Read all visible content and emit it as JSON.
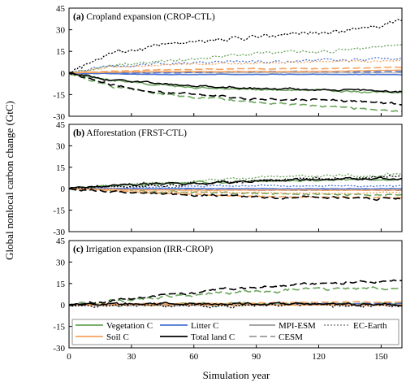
{
  "chart_data": {
    "type": "line",
    "xlabel": "Simulation year",
    "ylabel": "Global nonlocal carbon change (GtC)",
    "xlim": [
      0,
      160
    ],
    "ylim": [
      -30,
      45
    ],
    "xticks": [
      0,
      30,
      60,
      90,
      120,
      150
    ],
    "yticks": [
      -30,
      -15,
      0,
      15,
      30,
      45
    ],
    "colors": {
      "vegetation": "#6aa55c",
      "litter": "#4a73d4",
      "soil": "#f5a35f",
      "total": "#000000"
    },
    "linestyles": {
      "MPI-ESM": "solid",
      "CESM": "long-dash",
      "EC-Earth": "dotted"
    },
    "legend": {
      "placement": "inside-bottom of panel (c)",
      "pools": [
        {
          "key": "vegetation",
          "label": "Vegetation C"
        },
        {
          "key": "litter",
          "label": "Litter C"
        },
        {
          "key": "soil",
          "label": "Soil C"
        },
        {
          "key": "total",
          "label": "Total land C"
        }
      ],
      "models": [
        {
          "key": "MPI-ESM",
          "label": "MPI-ESM"
        },
        {
          "key": "EC-Earth",
          "label": "EC-Earth"
        },
        {
          "key": "CESM",
          "label": "CESM"
        }
      ]
    },
    "panels": [
      {
        "label": "(a)",
        "title": "Cropland expansion (CROP-CTL)",
        "series": [
          {
            "pool": "vegetation",
            "model": "MPI-ESM",
            "x": [
              0,
              20,
              40,
              60,
              80,
              100,
              120,
              140,
              160
            ],
            "y": [
              0,
              -5,
              -8,
              -10,
              -11,
              -12,
              -12,
              -13,
              -14
            ],
            "noise": 0.8
          },
          {
            "pool": "vegetation",
            "model": "CESM",
            "x": [
              0,
              20,
              40,
              60,
              80,
              100,
              120,
              140,
              160
            ],
            "y": [
              0,
              -9,
              -14,
              -17,
              -19,
              -21,
              -23,
              -25,
              -27
            ],
            "noise": 1.0
          },
          {
            "pool": "vegetation",
            "model": "EC-Earth",
            "x": [
              0,
              20,
              40,
              60,
              80,
              100,
              120,
              140,
              160
            ],
            "y": [
              0,
              5,
              8,
              10,
              12,
              14,
              15,
              17,
              20
            ],
            "noise": 1.4
          },
          {
            "pool": "litter",
            "model": "MPI-ESM",
            "x": [
              0,
              40,
              80,
              120,
              160
            ],
            "y": [
              0,
              -1,
              -1,
              -1,
              -1
            ],
            "noise": 0.2
          },
          {
            "pool": "litter",
            "model": "CESM",
            "x": [
              0,
              40,
              80,
              120,
              160
            ],
            "y": [
              0,
              0,
              1,
              1,
              1
            ],
            "noise": 0.3
          },
          {
            "pool": "litter",
            "model": "EC-Earth",
            "x": [
              0,
              20,
              40,
              60,
              80,
              100,
              120,
              140,
              160
            ],
            "y": [
              0,
              5,
              6,
              7,
              8,
              8,
              9,
              9,
              10
            ],
            "noise": 1.2
          },
          {
            "pool": "soil",
            "model": "MPI-ESM",
            "x": [
              0,
              40,
              80,
              120,
              160
            ],
            "y": [
              0,
              1,
              1,
              1,
              2
            ],
            "noise": 0.2
          },
          {
            "pool": "soil",
            "model": "CESM",
            "x": [
              0,
              40,
              80,
              120,
              160
            ],
            "y": [
              0,
              2,
              3,
              3,
              4
            ],
            "noise": 0.3
          },
          {
            "pool": "soil",
            "model": "EC-Earth",
            "x": [
              0,
              20,
              40,
              60,
              80,
              100,
              120,
              140,
              160
            ],
            "y": [
              0,
              4,
              5,
              6,
              7,
              7,
              8,
              8,
              9
            ],
            "noise": 0.7
          },
          {
            "pool": "total",
            "model": "MPI-ESM",
            "x": [
              0,
              20,
              40,
              60,
              80,
              100,
              120,
              140,
              160
            ],
            "y": [
              0,
              -5,
              -7,
              -9,
              -10,
              -11,
              -11,
              -12,
              -13
            ],
            "noise": 0.9
          },
          {
            "pool": "total",
            "model": "CESM",
            "x": [
              0,
              20,
              40,
              60,
              80,
              100,
              120,
              140,
              160
            ],
            "y": [
              0,
              -8,
              -13,
              -15,
              -17,
              -18,
              -19,
              -20,
              -22
            ],
            "noise": 1.0
          },
          {
            "pool": "total",
            "model": "EC-Earth",
            "x": [
              0,
              20,
              40,
              60,
              80,
              100,
              120,
              140,
              160
            ],
            "y": [
              0,
              13,
              18,
              21,
              24,
              26,
              28,
              30,
              36
            ],
            "noise": 1.8
          }
        ]
      },
      {
        "label": "(b)",
        "title": "Afforestation (FRST-CTL)",
        "series": [
          {
            "pool": "vegetation",
            "model": "MPI-ESM",
            "x": [
              0,
              20,
              40,
              60,
              80,
              100,
              120,
              140,
              160
            ],
            "y": [
              0,
              2,
              3,
              4,
              5,
              6,
              6,
              6,
              6
            ],
            "noise": 0.9
          },
          {
            "pool": "vegetation",
            "model": "CESM",
            "x": [
              0,
              40,
              80,
              120,
              160
            ],
            "y": [
              0,
              -2,
              -3,
              -4,
              -4
            ],
            "noise": 0.9
          },
          {
            "pool": "vegetation",
            "model": "EC-Earth",
            "x": [
              0,
              20,
              40,
              60,
              80,
              100,
              120,
              140,
              160
            ],
            "y": [
              0,
              2,
              4,
              6,
              7,
              8,
              9,
              9,
              10
            ],
            "noise": 1.2
          },
          {
            "pool": "litter",
            "model": "MPI-ESM",
            "x": [
              0,
              40,
              80,
              120,
              160
            ],
            "y": [
              0,
              0,
              0,
              0,
              0
            ],
            "noise": 0.3
          },
          {
            "pool": "litter",
            "model": "CESM",
            "x": [
              0,
              40,
              80,
              120,
              160
            ],
            "y": [
              0,
              0,
              -1,
              -1,
              -1
            ],
            "noise": 0.3
          },
          {
            "pool": "litter",
            "model": "EC-Earth",
            "x": [
              0,
              40,
              80,
              120,
              160
            ],
            "y": [
              0,
              1,
              2,
              2,
              2
            ],
            "noise": 0.6
          },
          {
            "pool": "soil",
            "model": "MPI-ESM",
            "x": [
              0,
              40,
              80,
              120,
              160
            ],
            "y": [
              0,
              -1,
              -1,
              -1,
              -1
            ],
            "noise": 0.2
          },
          {
            "pool": "soil",
            "model": "CESM",
            "x": [
              0,
              40,
              80,
              120,
              160
            ],
            "y": [
              0,
              -3,
              -5,
              -6,
              -6
            ],
            "noise": 0.4
          },
          {
            "pool": "soil",
            "model": "EC-Earth",
            "x": [
              0,
              40,
              80,
              120,
              160
            ],
            "y": [
              0,
              -2,
              -3,
              -3,
              -3
            ],
            "noise": 0.6
          },
          {
            "pool": "total",
            "model": "MPI-ESM",
            "x": [
              0,
              20,
              40,
              60,
              80,
              100,
              120,
              140,
              160
            ],
            "y": [
              0,
              2,
              3,
              4,
              5,
              6,
              7,
              7,
              7
            ],
            "noise": 1.1
          },
          {
            "pool": "total",
            "model": "CESM",
            "x": [
              0,
              20,
              40,
              60,
              80,
              100,
              120,
              140,
              160
            ],
            "y": [
              0,
              -2,
              -3,
              -4,
              -5,
              -6,
              -6,
              -7,
              -7
            ],
            "noise": 1.0
          },
          {
            "pool": "total",
            "model": "EC-Earth",
            "x": [
              0,
              20,
              40,
              60,
              80,
              100,
              120,
              140,
              160
            ],
            "y": [
              0,
              1,
              2,
              4,
              5,
              6,
              7,
              8,
              9
            ],
            "noise": 1.3
          }
        ]
      },
      {
        "label": "(c)",
        "title": "Irrigation expansion (IRR-CROP)",
        "series": [
          {
            "pool": "vegetation",
            "model": "MPI-ESM",
            "x": [
              0,
              40,
              80,
              120,
              160
            ],
            "y": [
              0,
              1,
              1,
              1,
              1
            ],
            "noise": 0.9
          },
          {
            "pool": "vegetation",
            "model": "CESM",
            "x": [
              0,
              20,
              40,
              60,
              80,
              100,
              120,
              140,
              160
            ],
            "y": [
              0,
              3,
              5,
              7,
              9,
              10,
              11,
              11,
              12
            ],
            "noise": 1.3
          },
          {
            "pool": "vegetation",
            "model": "EC-Earth",
            "x": [
              0,
              40,
              80,
              120,
              160
            ],
            "y": [
              0,
              0,
              0,
              0,
              0
            ],
            "noise": 1.0
          },
          {
            "pool": "litter",
            "model": "MPI-ESM",
            "x": [
              0,
              40,
              80,
              120,
              160
            ],
            "y": [
              0,
              0,
              0,
              0,
              0
            ],
            "noise": 0.3
          },
          {
            "pool": "litter",
            "model": "CESM",
            "x": [
              0,
              40,
              80,
              120,
              160
            ],
            "y": [
              0,
              0,
              0,
              1,
              1
            ],
            "noise": 0.3
          },
          {
            "pool": "litter",
            "model": "EC-Earth",
            "x": [
              0,
              40,
              80,
              120,
              160
            ],
            "y": [
              0,
              0,
              0,
              0,
              0
            ],
            "noise": 0.8
          },
          {
            "pool": "soil",
            "model": "MPI-ESM",
            "x": [
              0,
              40,
              80,
              120,
              160
            ],
            "y": [
              0,
              0,
              0,
              0,
              0
            ],
            "noise": 0.2
          },
          {
            "pool": "soil",
            "model": "CESM",
            "x": [
              0,
              40,
              80,
              120,
              160
            ],
            "y": [
              0,
              1,
              1,
              2,
              2
            ],
            "noise": 0.3
          },
          {
            "pool": "soil",
            "model": "EC-Earth",
            "x": [
              0,
              40,
              80,
              120,
              160
            ],
            "y": [
              0,
              0,
              0,
              0,
              0
            ],
            "noise": 0.5
          },
          {
            "pool": "total",
            "model": "MPI-ESM",
            "x": [
              0,
              40,
              80,
              120,
              160
            ],
            "y": [
              0,
              1,
              0,
              1,
              0
            ],
            "noise": 1.2
          },
          {
            "pool": "total",
            "model": "CESM",
            "x": [
              0,
              20,
              40,
              60,
              80,
              100,
              120,
              140,
              160
            ],
            "y": [
              0,
              3,
              6,
              9,
              11,
              13,
              15,
              16,
              17
            ],
            "noise": 1.1
          },
          {
            "pool": "total",
            "model": "EC-Earth",
            "x": [
              0,
              40,
              80,
              120,
              160
            ],
            "y": [
              0,
              0,
              -1,
              0,
              0
            ],
            "noise": 1.6
          }
        ]
      }
    ]
  }
}
